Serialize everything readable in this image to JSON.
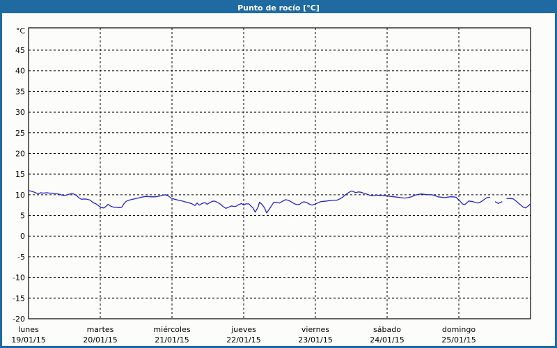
{
  "window": {
    "title": "Punto de rocío [°C]"
  },
  "colors": {
    "titlebar": "#1e6aa1",
    "frame": "#1e6aa1",
    "background": "#fcfdfb",
    "plot_border": "#000000",
    "grid": "#000000",
    "line": "#2323c8",
    "text": "#000000"
  },
  "chart_data": {
    "type": "line",
    "title": "Punto de rocío [°C]",
    "ylabel": "°C",
    "y_unit_label": "°C",
    "ylim": [
      -20,
      50
    ],
    "y_ticks": [
      45,
      40,
      35,
      30,
      25,
      20,
      15,
      10,
      5,
      0,
      -5,
      -10,
      -15,
      -20
    ],
    "grid": "dashed",
    "legend": "none",
    "x_axis": {
      "unit": "days",
      "range_days": [
        0,
        7
      ],
      "days": [
        {
          "name": "lunes",
          "date": "19/01/15"
        },
        {
          "name": "martes",
          "date": "20/01/15"
        },
        {
          "name": "miércoles",
          "date": "21/01/15"
        },
        {
          "name": "jueves",
          "date": "22/01/15"
        },
        {
          "name": "viernes",
          "date": "23/01/15"
        },
        {
          "name": "sábado",
          "date": "24/01/15"
        },
        {
          "name": "domingo",
          "date": "25/01/15"
        }
      ]
    },
    "series": [
      {
        "name": "Punto de rocío",
        "color": "#2323c8",
        "points": [
          [
            0.0,
            11.0
          ],
          [
            0.03,
            10.9
          ],
          [
            0.07,
            10.7
          ],
          [
            0.11,
            10.4
          ],
          [
            0.15,
            10.3
          ],
          [
            0.17,
            10.5
          ],
          [
            0.21,
            10.4
          ],
          [
            0.25,
            10.5
          ],
          [
            0.29,
            10.4
          ],
          [
            0.33,
            10.4
          ],
          [
            0.37,
            10.3
          ],
          [
            0.41,
            10.2
          ],
          [
            0.45,
            10.0
          ],
          [
            0.49,
            9.8
          ],
          [
            0.52,
            9.9
          ],
          [
            0.56,
            10.1
          ],
          [
            0.6,
            10.3
          ],
          [
            0.63,
            10.2
          ],
          [
            0.67,
            9.8
          ],
          [
            0.7,
            9.3
          ],
          [
            0.74,
            8.9
          ],
          [
            0.78,
            9.0
          ],
          [
            0.82,
            8.9
          ],
          [
            0.86,
            8.7
          ],
          [
            0.9,
            8.1
          ],
          [
            0.94,
            7.8
          ],
          [
            0.98,
            7.3
          ],
          [
            1.02,
            6.9
          ],
          [
            1.05,
            6.8
          ],
          [
            1.08,
            7.2
          ],
          [
            1.11,
            7.7
          ],
          [
            1.15,
            7.2
          ],
          [
            1.19,
            7.0
          ],
          [
            1.23,
            7.0
          ],
          [
            1.27,
            6.9
          ],
          [
            1.3,
            7.0
          ],
          [
            1.33,
            7.8
          ],
          [
            1.36,
            8.4
          ],
          [
            1.4,
            8.7
          ],
          [
            1.45,
            8.9
          ],
          [
            1.5,
            9.1
          ],
          [
            1.55,
            9.3
          ],
          [
            1.6,
            9.5
          ],
          [
            1.65,
            9.6
          ],
          [
            1.71,
            9.5
          ],
          [
            1.77,
            9.5
          ],
          [
            1.83,
            9.7
          ],
          [
            1.88,
            9.9
          ],
          [
            1.91,
            10.0
          ],
          [
            1.95,
            9.7
          ],
          [
            1.99,
            9.2
          ],
          [
            2.04,
            8.9
          ],
          [
            2.09,
            8.7
          ],
          [
            2.14,
            8.5
          ],
          [
            2.18,
            8.3
          ],
          [
            2.23,
            8.1
          ],
          [
            2.28,
            7.8
          ],
          [
            2.32,
            7.4
          ],
          [
            2.35,
            8.0
          ],
          [
            2.38,
            7.5
          ],
          [
            2.42,
            7.9
          ],
          [
            2.46,
            8.1
          ],
          [
            2.49,
            7.7
          ],
          [
            2.52,
            8.0
          ],
          [
            2.56,
            8.4
          ],
          [
            2.59,
            8.5
          ],
          [
            2.63,
            8.2
          ],
          [
            2.67,
            7.8
          ],
          [
            2.71,
            7.2
          ],
          [
            2.75,
            6.7
          ],
          [
            2.79,
            7.0
          ],
          [
            2.83,
            7.3
          ],
          [
            2.86,
            7.2
          ],
          [
            2.89,
            7.2
          ],
          [
            2.93,
            7.6
          ],
          [
            2.97,
            7.9
          ],
          [
            3.0,
            7.5
          ],
          [
            3.03,
            7.8
          ],
          [
            3.07,
            7.8
          ],
          [
            3.1,
            7.3
          ],
          [
            3.13,
            6.8
          ],
          [
            3.16,
            5.8
          ],
          [
            3.2,
            7.0
          ],
          [
            3.22,
            8.2
          ],
          [
            3.26,
            7.6
          ],
          [
            3.29,
            6.8
          ],
          [
            3.32,
            5.6
          ],
          [
            3.36,
            6.6
          ],
          [
            3.39,
            7.4
          ],
          [
            3.42,
            8.2
          ],
          [
            3.46,
            8.2
          ],
          [
            3.5,
            8.0
          ],
          [
            3.54,
            8.4
          ],
          [
            3.58,
            8.8
          ],
          [
            3.62,
            8.7
          ],
          [
            3.66,
            8.3
          ],
          [
            3.7,
            7.9
          ],
          [
            3.74,
            7.6
          ],
          [
            3.78,
            7.7
          ],
          [
            3.81,
            8.1
          ],
          [
            3.84,
            8.3
          ],
          [
            3.88,
            8.1
          ],
          [
            3.92,
            7.7
          ],
          [
            3.95,
            7.5
          ],
          [
            3.99,
            7.7
          ],
          [
            4.03,
            8.0
          ],
          [
            4.07,
            8.3
          ],
          [
            4.11,
            8.4
          ],
          [
            4.16,
            8.5
          ],
          [
            4.2,
            8.6
          ],
          [
            4.25,
            8.7
          ],
          [
            4.3,
            8.7
          ],
          [
            4.34,
            9.0
          ],
          [
            4.38,
            9.4
          ],
          [
            4.42,
            10.0
          ],
          [
            4.46,
            10.5
          ],
          [
            4.5,
            10.9
          ],
          [
            4.53,
            10.8
          ],
          [
            4.56,
            10.5
          ],
          [
            4.6,
            10.7
          ],
          [
            4.64,
            10.6
          ],
          [
            4.67,
            10.4
          ],
          [
            4.71,
            10.2
          ],
          [
            4.74,
            10.0
          ],
          [
            4.77,
            9.8
          ],
          [
            4.82,
            9.8
          ],
          [
            4.86,
            9.9
          ],
          [
            4.91,
            9.8
          ],
          [
            4.96,
            9.8
          ],
          [
            5.0,
            9.7
          ],
          [
            5.05,
            9.6
          ],
          [
            5.1,
            9.5
          ],
          [
            5.15,
            9.4
          ],
          [
            5.19,
            9.3
          ],
          [
            5.24,
            9.2
          ],
          [
            5.29,
            9.3
          ],
          [
            5.34,
            9.5
          ],
          [
            5.39,
            9.9
          ],
          [
            5.44,
            10.1
          ],
          [
            5.48,
            10.2
          ],
          [
            5.52,
            10.1
          ],
          [
            5.57,
            10.0
          ],
          [
            5.62,
            10.0
          ],
          [
            5.67,
            9.8
          ],
          [
            5.71,
            9.5
          ],
          [
            5.76,
            9.4
          ],
          [
            5.8,
            9.3
          ],
          [
            5.83,
            9.4
          ],
          [
            5.88,
            9.5
          ],
          [
            5.92,
            9.5
          ],
          [
            5.96,
            9.4
          ],
          [
            5.99,
            8.9
          ],
          [
            6.02,
            8.4
          ],
          [
            6.05,
            7.8
          ],
          [
            6.08,
            7.6
          ],
          [
            6.11,
            8.0
          ],
          [
            6.14,
            8.5
          ],
          [
            6.17,
            8.4
          ],
          [
            6.2,
            8.3
          ],
          [
            6.24,
            8.1
          ],
          [
            6.27,
            8.0
          ],
          [
            6.31,
            8.3
          ],
          [
            6.35,
            8.8
          ],
          [
            6.39,
            9.3
          ],
          [
            6.43,
            9.4
          ],
          null,
          [
            6.51,
            8.3
          ],
          [
            6.55,
            7.9
          ],
          [
            6.6,
            8.3
          ],
          null,
          [
            6.67,
            9.1
          ],
          [
            6.72,
            9.1
          ],
          [
            6.76,
            9.0
          ],
          [
            6.81,
            8.3
          ],
          [
            6.85,
            7.7
          ],
          [
            6.9,
            7.0
          ],
          [
            6.93,
            6.8
          ],
          [
            6.96,
            7.2
          ],
          [
            7.0,
            7.8
          ]
        ]
      }
    ]
  }
}
